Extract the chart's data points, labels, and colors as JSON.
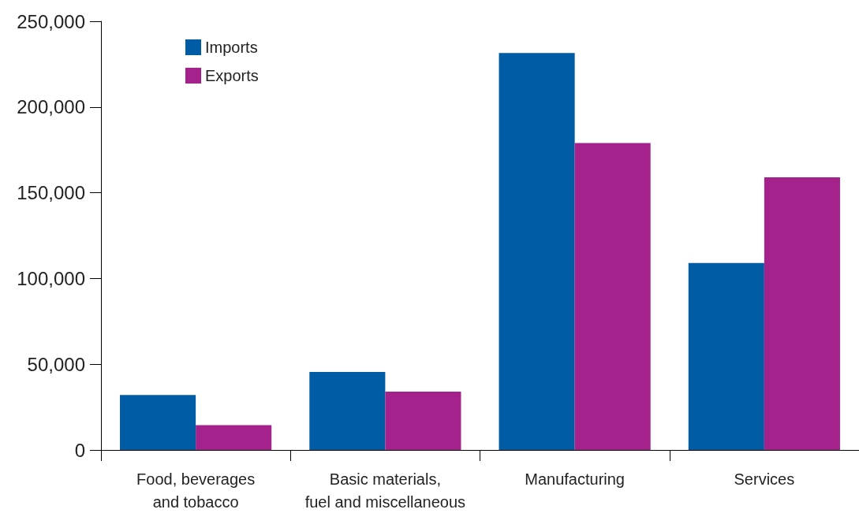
{
  "chart_data": {
    "type": "bar",
    "categories": [
      "Food, beverages\nand tobacco",
      "Basic materials,\nfuel and miscellaneous",
      "Manufacturing",
      "Services"
    ],
    "series": [
      {
        "name": "Imports",
        "color": "#005ca4",
        "values": [
          32000,
          45500,
          231500,
          109000
        ]
      },
      {
        "name": "Exports",
        "color": "#a5228d",
        "values": [
          14500,
          34000,
          179000,
          159000
        ]
      }
    ],
    "ylim": [
      0,
      250000
    ],
    "yticks": [
      0,
      {
        "value": 50000,
        "label": "50,000"
      },
      {
        "value": 100000,
        "label": "100,000"
      },
      {
        "value": 150000,
        "label": "150,000"
      },
      {
        "value": 200000,
        "label": "200,000"
      },
      {
        "value": 250000,
        "label": "250,000"
      }
    ],
    "grid": false,
    "legend": "top left"
  }
}
